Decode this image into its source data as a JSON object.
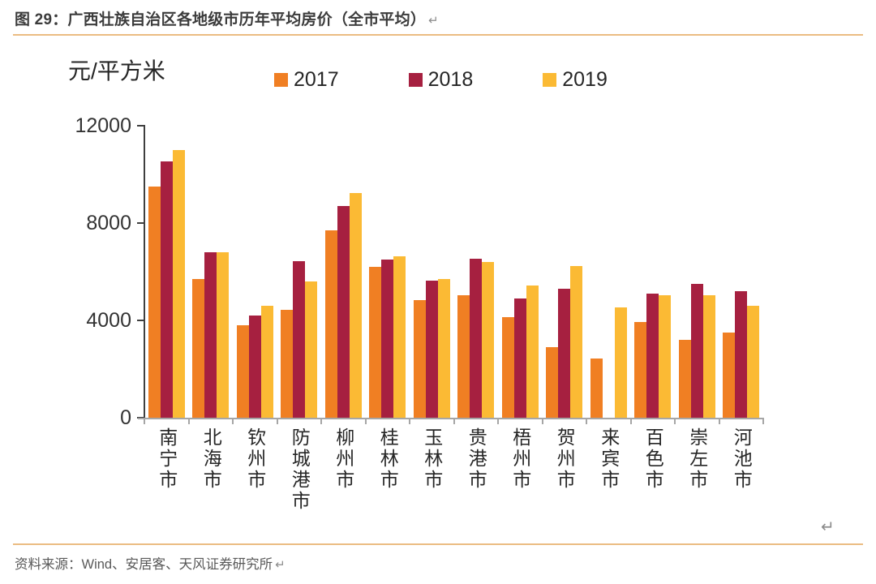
{
  "header": {
    "title": "图 29：广西壮族自治区各地级市历年平均房价（全市平均）",
    "return_mark": "↵"
  },
  "chart_data": {
    "type": "bar",
    "title": "广西壮族自治区各地级市历年平均房价（全市平均）",
    "ylabel": "元/平方米",
    "ylim": [
      0,
      12000
    ],
    "yticks": [
      12000,
      8000,
      4000,
      0
    ],
    "grid": false,
    "legend_position": "top",
    "categories": [
      "南宁市",
      "北海市",
      "钦州市",
      "防城港市",
      "柳州市",
      "桂林市",
      "玉林市",
      "贵港市",
      "梧州市",
      "贺州市",
      "来宾市",
      "百色市",
      "崇左市",
      "河池市"
    ],
    "series": [
      {
        "name": "2017",
        "color": "#F07F23",
        "values": [
          9500,
          5700,
          3800,
          4450,
          7700,
          6200,
          4850,
          5050,
          4150,
          2900,
          2450,
          3950,
          3200,
          3500
        ]
      },
      {
        "name": "2018",
        "color": "#A62040",
        "values": [
          10550,
          6800,
          4200,
          6450,
          8700,
          6500,
          5650,
          6550,
          4900,
          5300,
          null,
          5100,
          5500,
          5200
        ]
      },
      {
        "name": "2019",
        "color": "#FBBA34",
        "values": [
          11000,
          6800,
          4600,
          5600,
          9250,
          6650,
          5700,
          6400,
          5450,
          6250,
          4550,
          5050,
          5050,
          4600
        ]
      }
    ]
  },
  "chart": {
    "return_mark": "↵"
  },
  "footer": {
    "text": "资料来源：Wind、安居客、天风证券研究所",
    "return_mark": "↵"
  },
  "colors": {
    "accent_divider": "#EBBC82",
    "axis_dark": "#3F3F3F",
    "axis_gray": "#A6A6A6",
    "series_2017": "#F07F23",
    "series_2018": "#A62040",
    "series_2019": "#FBBA34"
  }
}
